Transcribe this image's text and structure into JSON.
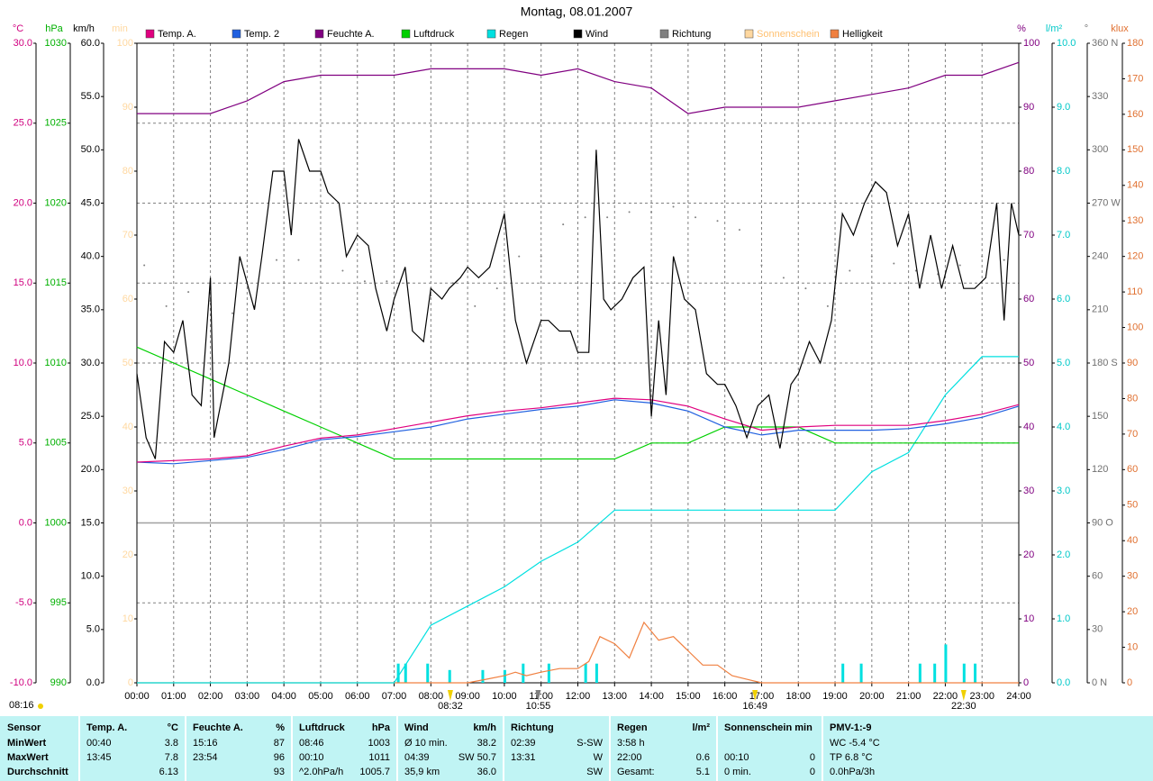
{
  "chart_data": {
    "type": "line",
    "title": "Montag, 08.01.2007",
    "xlim": [
      0,
      24
    ],
    "xticks": [
      {
        "value": 0,
        "label": "00:00"
      },
      {
        "value": 1,
        "label": "01:00"
      },
      {
        "value": 2,
        "label": "02:00"
      },
      {
        "value": 3,
        "label": "03:00"
      },
      {
        "value": 4,
        "label": "04:00"
      },
      {
        "value": 5,
        "label": "05:00"
      },
      {
        "value": 6,
        "label": "06:00"
      },
      {
        "value": 7,
        "label": "07:00"
      },
      {
        "value": 8,
        "label": "08:00"
      },
      {
        "value": 9,
        "label": "09:00"
      },
      {
        "value": 10,
        "label": "10:00"
      },
      {
        "value": 11,
        "label": "11:00"
      },
      {
        "value": 12,
        "label": "12:00"
      },
      {
        "value": 13,
        "label": "13:00"
      },
      {
        "value": 14,
        "label": "14:00"
      },
      {
        "value": 15,
        "label": "15:00"
      },
      {
        "value": 16,
        "label": "16:00"
      },
      {
        "value": 17,
        "label": "17:00"
      },
      {
        "value": 18,
        "label": "18:00"
      },
      {
        "value": 19,
        "label": "19:00"
      },
      {
        "value": 20,
        "label": "20:00"
      },
      {
        "value": 21,
        "label": "21:00"
      },
      {
        "value": 22,
        "label": "22:00"
      },
      {
        "value": 23,
        "label": "23:00"
      },
      {
        "value": 24,
        "label": "24:00"
      }
    ],
    "grid": true,
    "axes": [
      {
        "unit": "°C",
        "color": "#d0007f",
        "lim": [
          -10,
          30
        ],
        "ticks": [
          {
            "value": 30,
            "label": "30.0"
          },
          {
            "value": 25,
            "label": "25.0"
          },
          {
            "value": 20,
            "label": "20.0"
          },
          {
            "value": 15,
            "label": "15.0"
          },
          {
            "value": 10,
            "label": "10.0"
          },
          {
            "value": 5,
            "label": "5.0"
          },
          {
            "value": 0,
            "label": "0.0"
          },
          {
            "value": -5,
            "label": "-5.0"
          },
          {
            "value": -10,
            "label": "-10.0"
          }
        ]
      },
      {
        "unit": "hPa",
        "color": "#00b000",
        "lim": [
          990,
          1030
        ],
        "ticks": [
          1030,
          1025,
          1020,
          1015,
          1010,
          1005,
          1000,
          995,
          990
        ]
      },
      {
        "unit": "km/h",
        "color": "#000000",
        "lim": [
          0,
          60
        ],
        "ticks": [
          {
            "value": 60,
            "label": "60.0"
          },
          {
            "value": 55,
            "label": "55.0"
          },
          {
            "value": 50,
            "label": "50.0"
          },
          {
            "value": 45,
            "label": "45.0"
          },
          {
            "value": 40,
            "label": "40.0"
          },
          {
            "value": 35,
            "label": "35.0"
          },
          {
            "value": 30,
            "label": "30.0"
          },
          {
            "value": 25,
            "label": "25.0"
          },
          {
            "value": 20,
            "label": "20.0"
          },
          {
            "value": 15,
            "label": "15.0"
          },
          {
            "value": 10,
            "label": "10.0"
          },
          {
            "value": 5,
            "label": "5.0"
          },
          {
            "value": 0,
            "label": "0.0"
          }
        ]
      },
      {
        "unit": "min",
        "color": "#ffd8a0",
        "lim": [
          0,
          100
        ],
        "ticks": [
          100,
          90,
          80,
          70,
          60,
          50,
          40,
          30,
          20,
          10,
          0
        ]
      },
      {
        "unit": "%",
        "color": "#800080",
        "lim": [
          0,
          100
        ],
        "ticks": [
          100,
          90,
          80,
          70,
          60,
          50,
          40,
          30,
          20,
          10,
          0
        ]
      },
      {
        "unit": "l/m²",
        "color": "#00c8c8",
        "lim": [
          0,
          10
        ],
        "ticks": [
          {
            "value": 10,
            "label": "10.0"
          },
          {
            "value": 9,
            "label": "9.0"
          },
          {
            "value": 8,
            "label": "8.0"
          },
          {
            "value": 7,
            "label": "7.0"
          },
          {
            "value": 6,
            "label": "6.0"
          },
          {
            "value": 5,
            "label": "5.0"
          },
          {
            "value": 4,
            "label": "4.0"
          },
          {
            "value": 3,
            "label": "3.0"
          },
          {
            "value": 2,
            "label": "2.0"
          },
          {
            "value": 1,
            "label": "1.0"
          },
          {
            "value": 0,
            "label": "0.0"
          }
        ]
      },
      {
        "unit": "°",
        "color": "#707070",
        "lim": [
          0,
          360
        ],
        "ticks": [
          {
            "value": 360,
            "label": "360 N"
          },
          330,
          300,
          {
            "value": 270,
            "label": "270 W"
          },
          240,
          210,
          {
            "value": 180,
            "label": "180 S"
          },
          150,
          120,
          {
            "value": 90,
            "label": "90 O"
          },
          60,
          30,
          {
            "value": 0,
            "label": "0 N"
          }
        ]
      },
      {
        "unit": "klux",
        "color": "#e07030",
        "lim": [
          0,
          180
        ],
        "ticks": [
          180,
          170,
          160,
          150,
          140,
          130,
          120,
          110,
          100,
          90,
          80,
          70,
          60,
          50,
          40,
          30,
          20,
          10,
          0
        ]
      }
    ],
    "series": [
      {
        "name": "Temp. A.",
        "color": "#e0007f",
        "axis": 0,
        "x": [
          0,
          1,
          2,
          3,
          4,
          5,
          6,
          7,
          8,
          9,
          10,
          11,
          12,
          13,
          14,
          15,
          16,
          17,
          18,
          19,
          20,
          21,
          22,
          23,
          24
        ],
        "values": [
          3.8,
          3.9,
          4.0,
          4.2,
          4.8,
          5.3,
          5.5,
          5.9,
          6.3,
          6.7,
          7.0,
          7.2,
          7.5,
          7.8,
          7.7,
          7.3,
          6.5,
          5.8,
          6.0,
          6.1,
          6.1,
          6.1,
          6.4,
          6.8,
          7.4
        ]
      },
      {
        "name": "Temp. 2",
        "color": "#2060e0",
        "axis": 0,
        "x": [
          0,
          1,
          2,
          3,
          4,
          5,
          6,
          7,
          8,
          9,
          10,
          11,
          12,
          13,
          14,
          15,
          16,
          17,
          18,
          19,
          20,
          21,
          22,
          23,
          24
        ],
        "values": [
          3.8,
          3.7,
          3.9,
          4.1,
          4.6,
          5.2,
          5.4,
          5.7,
          6.0,
          6.5,
          6.8,
          7.1,
          7.3,
          7.7,
          7.5,
          7.0,
          6.0,
          5.5,
          5.8,
          5.8,
          5.8,
          5.9,
          6.2,
          6.6,
          7.3
        ]
      },
      {
        "name": "Feuchte A.",
        "color": "#800080",
        "axis": 4,
        "x": [
          0,
          1,
          2,
          3,
          4,
          5,
          6,
          7,
          8,
          9,
          10,
          11,
          12,
          13,
          14,
          15,
          16,
          17,
          18,
          19,
          20,
          21,
          22,
          23,
          24
        ],
        "values": [
          89,
          89,
          89,
          91,
          94,
          95,
          95,
          95,
          96,
          96,
          96,
          95,
          96,
          94,
          93,
          89,
          90,
          90,
          90,
          91,
          92,
          93,
          95,
          95,
          97
        ]
      },
      {
        "name": "Luftdruck",
        "color": "#00d000",
        "axis": 1,
        "x": [
          0,
          1,
          2,
          3,
          4,
          5,
          6,
          7,
          8,
          9,
          10,
          11,
          12,
          13,
          14,
          15,
          16,
          17,
          18,
          19,
          20,
          21,
          22,
          23,
          24
        ],
        "values": [
          1011,
          1010,
          1009,
          1008,
          1007,
          1006,
          1005,
          1004,
          1004,
          1004,
          1004,
          1004,
          1004,
          1004,
          1005,
          1005,
          1006,
          1006,
          1006,
          1005,
          1005,
          1005,
          1005,
          1005,
          1005
        ]
      },
      {
        "name": "Regen",
        "color": "#00e0e0",
        "axis": 5,
        "x": [
          0,
          1,
          2,
          3,
          4,
          5,
          6,
          7,
          8,
          9,
          10,
          11,
          12,
          13,
          14,
          15,
          16,
          17,
          18,
          19,
          20,
          21,
          22,
          23,
          24
        ],
        "values": [
          0,
          0,
          0,
          0,
          0,
          0,
          0,
          0,
          0.9,
          1.2,
          1.5,
          1.9,
          2.2,
          2.7,
          2.7,
          2.7,
          2.7,
          2.7,
          2.7,
          2.7,
          3.3,
          3.6,
          4.5,
          5.1,
          5.1
        ]
      },
      {
        "name": "Wind",
        "color": "#000000",
        "axis": 2,
        "x": [
          0,
          0.25,
          0.5,
          0.75,
          1,
          1.25,
          1.5,
          1.75,
          2,
          2.1,
          2.5,
          2.8,
          3.2,
          3.4,
          3.7,
          4,
          4.2,
          4.4,
          4.7,
          5,
          5.2,
          5.5,
          5.7,
          6,
          6.3,
          6.5,
          6.8,
          7,
          7.3,
          7.5,
          7.8,
          8,
          8.3,
          8.5,
          8.8,
          9,
          9.3,
          9.6,
          10,
          10.3,
          10.6,
          11,
          11.2,
          11.5,
          11.8,
          12,
          12.3,
          12.5,
          12.7,
          12.9,
          13.2,
          13.5,
          13.8,
          14,
          14.2,
          14.4,
          14.6,
          14.9,
          15.2,
          15.5,
          15.8,
          16,
          16.3,
          16.6,
          16.9,
          17.2,
          17.5,
          17.8,
          18,
          18.3,
          18.6,
          18.9,
          19.2,
          19.5,
          19.8,
          20.1,
          20.4,
          20.7,
          21,
          21.3,
          21.6,
          21.9,
          22.2,
          22.5,
          22.8,
          23.1,
          23.4,
          23.6,
          23.8,
          24
        ],
        "values": [
          29,
          23,
          21,
          32,
          31,
          34,
          27,
          26,
          38,
          23,
          30,
          40,
          35,
          40,
          48,
          48,
          42,
          51,
          48,
          48,
          46,
          45,
          40,
          42,
          41,
          37,
          33,
          36,
          39,
          33,
          32,
          37,
          36,
          37,
          38,
          39,
          38,
          39,
          44,
          34,
          30,
          34,
          34,
          33,
          33,
          31,
          31,
          50,
          36,
          35,
          36,
          38,
          39,
          25,
          34,
          27,
          40,
          36,
          35,
          29,
          28,
          28,
          26,
          23,
          26,
          27,
          22,
          28,
          29,
          32,
          30,
          34,
          44,
          42,
          45,
          47,
          46,
          41,
          44,
          37,
          42,
          37,
          41,
          37,
          37,
          38,
          45,
          34,
          45,
          42
        ]
      },
      {
        "name": "Richtung",
        "color": "#808080",
        "axis": 6,
        "style": "dots",
        "x": [
          0.2,
          0.8,
          1.4,
          2.0,
          2.6,
          3.2,
          3.8,
          4.4,
          5.0,
          5.6,
          6.2,
          6.8,
          7.4,
          8.0,
          8.6,
          9.2,
          9.8,
          10.4,
          11.0,
          11.6,
          12.2,
          12.8,
          13.4,
          14.0,
          14.6,
          15.2,
          15.8,
          16.4,
          17.0,
          17.6,
          18.2,
          18.8,
          19.4,
          20.0,
          20.6,
          21.2,
          21.8,
          22.4,
          23.0,
          23.6
        ],
        "values": [
          235,
          212,
          220,
          215,
          208,
          212,
          238,
          238,
          238,
          232,
          226,
          226,
          225,
          218,
          225,
          212,
          222,
          240,
          240,
          258,
          262,
          262,
          265,
          265,
          268,
          262,
          260,
          255,
          235,
          228,
          222,
          212,
          232,
          240,
          236,
          232,
          230,
          235,
          240,
          238
        ]
      },
      {
        "name": "Sonnenschein",
        "color": "#ffd8a0",
        "text_color": "#ffc070",
        "axis": 3
      },
      {
        "name": "Helligkeit",
        "color": "#f08040",
        "axis": 7,
        "x": [
          0,
          9,
          9.5,
          10,
          10.3,
          10.6,
          11,
          11.5,
          12,
          12.3,
          12.6,
          13,
          13.4,
          13.8,
          14.2,
          14.6,
          15,
          15.4,
          15.8,
          16.2,
          16.6,
          17,
          24
        ],
        "values": [
          0,
          0,
          1,
          2,
          3,
          2,
          3,
          4,
          4,
          6,
          13,
          11,
          7,
          17,
          12,
          13,
          9,
          5,
          5,
          2,
          1,
          0,
          0
        ]
      }
    ],
    "rain_bars": {
      "color": "#00e0e0",
      "axis": 5,
      "x": [
        7.1,
        7.3,
        7.9,
        8.5,
        9.4,
        10,
        10.5,
        11.2,
        12.2,
        12.5,
        19.2,
        19.7,
        21.3,
        21.7,
        22,
        22.5,
        22.8
      ],
      "values": [
        0.3,
        0.3,
        0.3,
        0.2,
        0.2,
        0.2,
        0.3,
        0.3,
        0.3,
        0.3,
        0.3,
        0.3,
        0.3,
        0.3,
        0.6,
        0.3,
        0.3
      ]
    },
    "sunrise_label": "08:16",
    "annotations": [
      {
        "label": "08:32",
        "x": 8.53,
        "color": "#f0d000"
      },
      {
        "label": "10:55",
        "x": 10.92,
        "color": "#808080"
      },
      {
        "label": "16:49",
        "x": 16.82,
        "color": "#f0d000"
      },
      {
        "label": "22:30",
        "x": 22.5,
        "color": "#f0d000"
      }
    ]
  },
  "table": {
    "columns": [
      {
        "title": "Sensor",
        "cells": [
          "MinWert",
          "MaxWert",
          "Durchschnitt"
        ]
      },
      {
        "title": "Temp. A.",
        "unit": "°C",
        "cells": [
          [
            "00:40",
            "3.8"
          ],
          [
            "13:45",
            "7.8"
          ],
          [
            null,
            "6.13"
          ]
        ]
      },
      {
        "title": "Feuchte A.",
        "unit": "%",
        "cells": [
          [
            "15:16",
            "87"
          ],
          [
            "23:54",
            "96"
          ],
          [
            null,
            "93"
          ]
        ]
      },
      {
        "title": "Luftdruck",
        "unit": "hPa",
        "cells": [
          [
            "08:46",
            "1003"
          ],
          [
            "00:10",
            "1011"
          ],
          [
            "^2.0hPa/h",
            "1005.7"
          ]
        ]
      },
      {
        "title": "Wind",
        "unit": "km/h",
        "cells": [
          [
            "Ø 10 min.",
            "38.2"
          ],
          [
            "04:39",
            "SW 50.7"
          ],
          [
            "35,9 km",
            "36.0"
          ]
        ]
      },
      {
        "title": "Richtung",
        "cells": [
          [
            "02:39",
            "S-SW"
          ],
          [
            "13:31",
            "W"
          ],
          [
            null,
            "SW"
          ]
        ]
      },
      {
        "title": "Regen",
        "unit": "l/m²",
        "cells": [
          [
            "3:58 h",
            null
          ],
          [
            "22:00",
            "0.6"
          ],
          [
            "Gesamt:",
            "5.1"
          ]
        ]
      },
      {
        "title": "Sonnenschein min",
        "cells": [
          null,
          [
            "00:10",
            "0"
          ],
          [
            "0 min.",
            "0"
          ]
        ]
      },
      {
        "title": "PMV-1:-9",
        "cells": [
          "WC -5.4 °C",
          "TP 6.8 °C",
          "0.0hPa/3h"
        ]
      }
    ]
  }
}
